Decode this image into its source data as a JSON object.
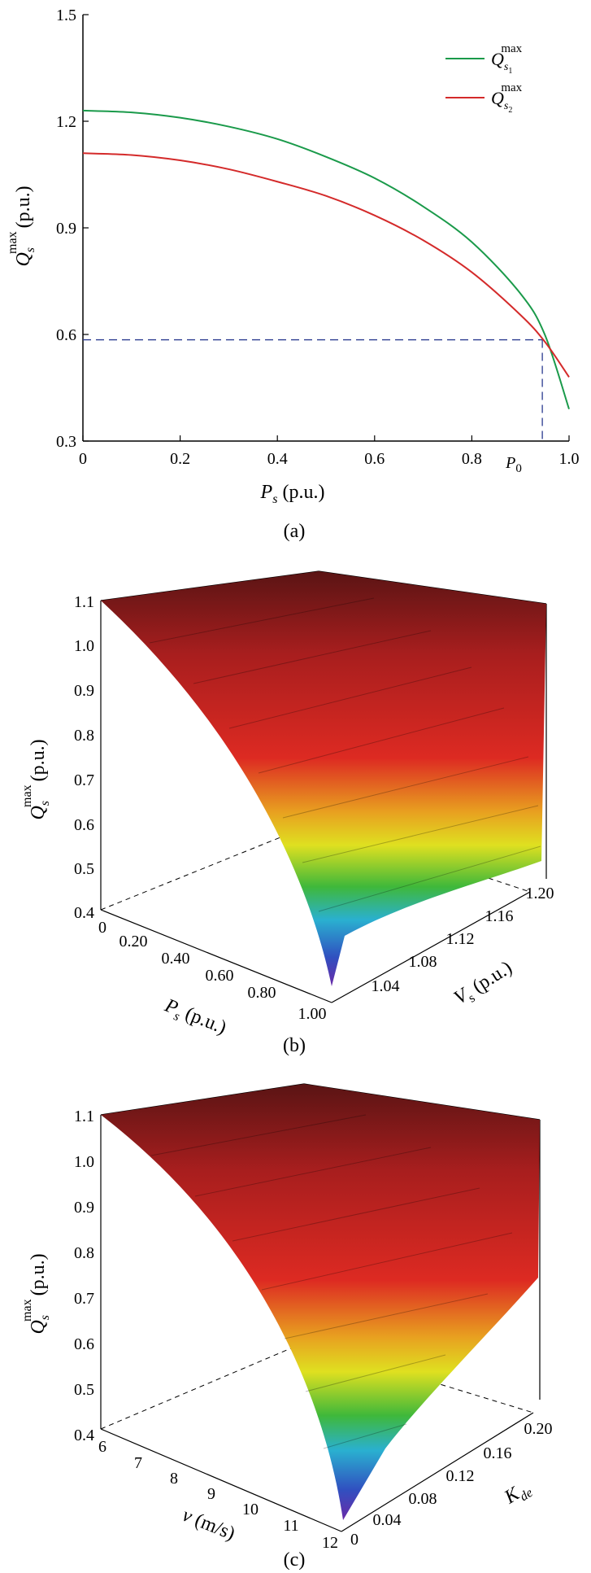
{
  "chart_data": [
    {
      "type": "line",
      "panel_label": "(a)",
      "xlabel": {
        "main": "P",
        "sub": "s",
        "unit": "(p.u.)"
      },
      "ylabel": {
        "main": "Q",
        "sub": "s",
        "sup": "max",
        "unit": "(p.u.)"
      },
      "xlim": [
        0,
        1.0
      ],
      "ylim": [
        0.3,
        1.5
      ],
      "x_ticks": [
        "0",
        "0.2",
        "0.4",
        "0.6",
        "0.8",
        "1.0"
      ],
      "x_tick_values": [
        0,
        0.2,
        0.4,
        0.6,
        0.8,
        1.0
      ],
      "y_ticks": [
        "0.3",
        "0.6",
        "0.9",
        "1.2",
        "1.5"
      ],
      "y_tick_values": [
        0.3,
        0.6,
        0.9,
        1.2,
        1.5
      ],
      "annotation": {
        "label": "P",
        "sub": "0",
        "x": 0.945,
        "y": 0.585
      },
      "series": [
        {
          "name": "Q_{s1}^{max}",
          "legend": {
            "main": "Q",
            "sub": "s",
            "subsub": "1",
            "sup": "max"
          },
          "color": "#1a9a4a",
          "x": [
            0,
            0.1,
            0.2,
            0.3,
            0.4,
            0.5,
            0.6,
            0.7,
            0.8,
            0.9,
            0.95,
            1.0
          ],
          "y": [
            1.23,
            1.225,
            1.21,
            1.185,
            1.15,
            1.1,
            1.04,
            0.96,
            0.86,
            0.715,
            0.6,
            0.39
          ]
        },
        {
          "name": "Q_{s2}^{max}",
          "legend": {
            "main": "Q",
            "sub": "s",
            "subsub": "2",
            "sup": "max"
          },
          "color": "#d42a2a",
          "x": [
            0,
            0.1,
            0.2,
            0.3,
            0.4,
            0.5,
            0.6,
            0.7,
            0.8,
            0.9,
            0.95,
            1.0
          ],
          "y": [
            1.11,
            1.105,
            1.09,
            1.065,
            1.03,
            0.99,
            0.935,
            0.865,
            0.775,
            0.655,
            0.58,
            0.48
          ]
        }
      ]
    },
    {
      "type": "surface",
      "panel_label": "(b)",
      "zlabel": {
        "main": "Q",
        "sub": "s",
        "sup": "max",
        "unit": "(p.u.)"
      },
      "xlabel": {
        "main": "P",
        "sub": "s",
        "unit": "(p.u.)"
      },
      "ylabel": {
        "main": "V",
        "sub": "s",
        "unit": "(p.u.)"
      },
      "z_ticks": [
        "1.1",
        "1.0",
        "0.9",
        "0.8",
        "0.7",
        "0.6",
        "0.5",
        "0.4"
      ],
      "x_ticks": [
        "0",
        "0.20",
        "0.40",
        "0.60",
        "0.80",
        "1.00"
      ],
      "y_ticks": [
        "1.04",
        "1.08",
        "1.12",
        "1.16",
        "1.20"
      ],
      "zlim": [
        0.4,
        1.1
      ]
    },
    {
      "type": "surface",
      "panel_label": "(c)",
      "zlabel": {
        "main": "Q",
        "sub": "s",
        "sup": "max",
        "unit": "(p.u.)"
      },
      "xlabel": {
        "main": "v",
        "unit": "(m/s)"
      },
      "ylabel": {
        "main": "K",
        "sub": "de"
      },
      "z_ticks": [
        "1.1",
        "1.0",
        "0.9",
        "0.8",
        "0.7",
        "0.6",
        "0.5",
        "0.4"
      ],
      "x_ticks": [
        "6",
        "7",
        "8",
        "9",
        "10",
        "11",
        "12"
      ],
      "y_ticks": [
        "0",
        "0.04",
        "0.08",
        "0.12",
        "0.16",
        "0.20"
      ],
      "zlim": [
        0.4,
        1.1
      ]
    }
  ]
}
